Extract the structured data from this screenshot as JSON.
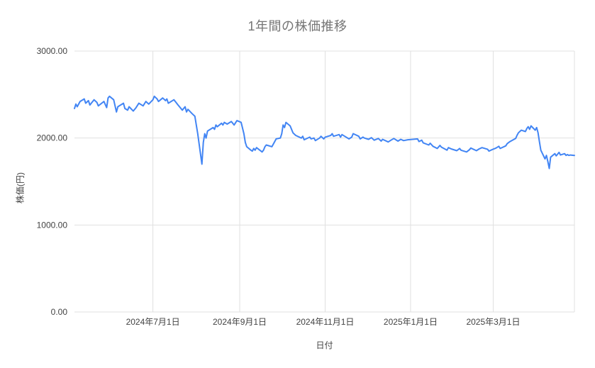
{
  "chart_data": {
    "type": "line",
    "title": "1年間の株価推移",
    "xlabel": "日付",
    "ylabel": "株価(円)",
    "ylim": [
      0,
      3000
    ],
    "grid": true,
    "legend": "none",
    "line_color": "#4285f4",
    "grid_color": "#e0e0e0",
    "background_color": "#ffffff",
    "y_ticks": [
      {
        "value": 0,
        "label": "0.00"
      },
      {
        "value": 1000,
        "label": "1000.00"
      },
      {
        "value": 2000,
        "label": "2000.00"
      },
      {
        "value": 3000,
        "label": "3000.00"
      }
    ],
    "x_ticks": [
      {
        "date": "2024-07-01",
        "label": "2024年7月1日"
      },
      {
        "date": "2024-09-01",
        "label": "2024年9月1日"
      },
      {
        "date": "2024-11-01",
        "label": "2024年11月1日"
      },
      {
        "date": "2025-01-01",
        "label": "2025年1月1日"
      },
      {
        "date": "2025-03-01",
        "label": "2025年3月1日"
      }
    ],
    "series": [
      {
        "points": [
          [
            "2024-05-06",
            2340
          ],
          [
            "2024-05-07",
            2390
          ],
          [
            "2024-05-08",
            2360
          ],
          [
            "2024-05-10",
            2420
          ],
          [
            "2024-05-13",
            2450
          ],
          [
            "2024-05-14",
            2400
          ],
          [
            "2024-05-16",
            2430
          ],
          [
            "2024-05-17",
            2380
          ],
          [
            "2024-05-20",
            2440
          ],
          [
            "2024-05-22",
            2410
          ],
          [
            "2024-05-23",
            2370
          ],
          [
            "2024-05-27",
            2420
          ],
          [
            "2024-05-29",
            2350
          ],
          [
            "2024-05-30",
            2460
          ],
          [
            "2024-05-31",
            2480
          ],
          [
            "2024-06-03",
            2440
          ],
          [
            "2024-06-05",
            2300
          ],
          [
            "2024-06-06",
            2360
          ],
          [
            "2024-06-10",
            2400
          ],
          [
            "2024-06-11",
            2340
          ],
          [
            "2024-06-13",
            2320
          ],
          [
            "2024-06-14",
            2360
          ],
          [
            "2024-06-17",
            2310
          ],
          [
            "2024-06-19",
            2350
          ],
          [
            "2024-06-21",
            2400
          ],
          [
            "2024-06-24",
            2370
          ],
          [
            "2024-06-26",
            2420
          ],
          [
            "2024-06-28",
            2390
          ],
          [
            "2024-07-01",
            2440
          ],
          [
            "2024-07-02",
            2480
          ],
          [
            "2024-07-04",
            2450
          ],
          [
            "2024-07-05",
            2420
          ],
          [
            "2024-07-08",
            2460
          ],
          [
            "2024-07-10",
            2430
          ],
          [
            "2024-07-11",
            2450
          ],
          [
            "2024-07-12",
            2400
          ],
          [
            "2024-07-16",
            2440
          ],
          [
            "2024-07-17",
            2420
          ],
          [
            "2024-07-19",
            2380
          ],
          [
            "2024-07-22",
            2320
          ],
          [
            "2024-07-24",
            2360
          ],
          [
            "2024-07-25",
            2300
          ],
          [
            "2024-07-26",
            2330
          ],
          [
            "2024-07-29",
            2280
          ],
          [
            "2024-07-31",
            2250
          ],
          [
            "2024-08-01",
            2150
          ],
          [
            "2024-08-02",
            2050
          ],
          [
            "2024-08-05",
            1700
          ],
          [
            "2024-08-06",
            1950
          ],
          [
            "2024-08-07",
            2050
          ],
          [
            "2024-08-08",
            2000
          ],
          [
            "2024-08-09",
            2080
          ],
          [
            "2024-08-13",
            2120
          ],
          [
            "2024-08-14",
            2100
          ],
          [
            "2024-08-15",
            2150
          ],
          [
            "2024-08-16",
            2130
          ],
          [
            "2024-08-19",
            2170
          ],
          [
            "2024-08-20",
            2150
          ],
          [
            "2024-08-21",
            2180
          ],
          [
            "2024-08-23",
            2160
          ],
          [
            "2024-08-26",
            2190
          ],
          [
            "2024-08-27",
            2170
          ],
          [
            "2024-08-28",
            2150
          ],
          [
            "2024-08-30",
            2200
          ],
          [
            "2024-09-02",
            2180
          ],
          [
            "2024-09-04",
            2050
          ],
          [
            "2024-09-05",
            1950
          ],
          [
            "2024-09-06",
            1900
          ],
          [
            "2024-09-09",
            1860
          ],
          [
            "2024-09-10",
            1850
          ],
          [
            "2024-09-11",
            1880
          ],
          [
            "2024-09-12",
            1860
          ],
          [
            "2024-09-13",
            1890
          ],
          [
            "2024-09-17",
            1840
          ],
          [
            "2024-09-18",
            1860
          ],
          [
            "2024-09-19",
            1900
          ],
          [
            "2024-09-20",
            1920
          ],
          [
            "2024-09-24",
            1900
          ],
          [
            "2024-09-26",
            1960
          ],
          [
            "2024-09-27",
            1990
          ],
          [
            "2024-09-30",
            2000
          ],
          [
            "2024-10-01",
            2050
          ],
          [
            "2024-10-02",
            2150
          ],
          [
            "2024-10-03",
            2120
          ],
          [
            "2024-10-04",
            2180
          ],
          [
            "2024-10-07",
            2140
          ],
          [
            "2024-10-08",
            2100
          ],
          [
            "2024-10-09",
            2060
          ],
          [
            "2024-10-11",
            2030
          ],
          [
            "2024-10-15",
            2000
          ],
          [
            "2024-10-16",
            2020
          ],
          [
            "2024-10-17",
            1980
          ],
          [
            "2024-10-21",
            2010
          ],
          [
            "2024-10-22",
            1990
          ],
          [
            "2024-10-24",
            2000
          ],
          [
            "2024-10-25",
            1970
          ],
          [
            "2024-10-28",
            2000
          ],
          [
            "2024-10-29",
            2020
          ],
          [
            "2024-10-31",
            1990
          ],
          [
            "2024-11-01",
            2010
          ],
          [
            "2024-11-05",
            2030
          ],
          [
            "2024-11-06",
            2050
          ],
          [
            "2024-11-07",
            2020
          ],
          [
            "2024-11-11",
            2040
          ],
          [
            "2024-11-12",
            2010
          ],
          [
            "2024-11-13",
            2040
          ],
          [
            "2024-11-15",
            2020
          ],
          [
            "2024-11-18",
            1990
          ],
          [
            "2024-11-20",
            2010
          ],
          [
            "2024-11-21",
            2050
          ],
          [
            "2024-11-25",
            2020
          ],
          [
            "2024-11-26",
            1990
          ],
          [
            "2024-11-28",
            2010
          ],
          [
            "2024-11-29",
            2000
          ],
          [
            "2024-12-02",
            1985
          ],
          [
            "2024-12-04",
            2005
          ],
          [
            "2024-12-06",
            1975
          ],
          [
            "2024-12-09",
            1995
          ],
          [
            "2024-12-11",
            1965
          ],
          [
            "2024-12-12",
            1985
          ],
          [
            "2024-12-16",
            1955
          ],
          [
            "2024-12-18",
            1975
          ],
          [
            "2024-12-20",
            1995
          ],
          [
            "2024-12-23",
            1965
          ],
          [
            "2024-12-25",
            1985
          ],
          [
            "2024-12-27",
            1970
          ],
          [
            "2024-12-30",
            1980
          ],
          [
            "2025-01-06",
            1990
          ],
          [
            "2025-01-07",
            1960
          ],
          [
            "2025-01-09",
            1975
          ],
          [
            "2025-01-10",
            1945
          ],
          [
            "2025-01-14",
            1920
          ],
          [
            "2025-01-15",
            1940
          ],
          [
            "2025-01-17",
            1905
          ],
          [
            "2025-01-20",
            1880
          ],
          [
            "2025-01-22",
            1915
          ],
          [
            "2025-01-23",
            1895
          ],
          [
            "2025-01-27",
            1860
          ],
          [
            "2025-01-28",
            1890
          ],
          [
            "2025-01-30",
            1875
          ],
          [
            "2025-02-03",
            1855
          ],
          [
            "2025-02-05",
            1880
          ],
          [
            "2025-02-06",
            1860
          ],
          [
            "2025-02-10",
            1840
          ],
          [
            "2025-02-12",
            1865
          ],
          [
            "2025-02-13",
            1885
          ],
          [
            "2025-02-17",
            1855
          ],
          [
            "2025-02-19",
            1875
          ],
          [
            "2025-02-21",
            1890
          ],
          [
            "2025-02-25",
            1870
          ],
          [
            "2025-02-26",
            1850
          ],
          [
            "2025-02-28",
            1865
          ],
          [
            "2025-03-03",
            1885
          ],
          [
            "2025-03-05",
            1905
          ],
          [
            "2025-03-06",
            1880
          ],
          [
            "2025-03-10",
            1910
          ],
          [
            "2025-03-11",
            1935
          ],
          [
            "2025-03-13",
            1960
          ],
          [
            "2025-03-17",
            1995
          ],
          [
            "2025-03-18",
            2030
          ],
          [
            "2025-03-19",
            2060
          ],
          [
            "2025-03-21",
            2090
          ],
          [
            "2025-03-24",
            2075
          ],
          [
            "2025-03-25",
            2110
          ],
          [
            "2025-03-26",
            2130
          ],
          [
            "2025-03-27",
            2100
          ],
          [
            "2025-03-28",
            2140
          ],
          [
            "2025-03-31",
            2090
          ],
          [
            "2025-04-01",
            2120
          ],
          [
            "2025-04-02",
            2060
          ],
          [
            "2025-04-03",
            1960
          ],
          [
            "2025-04-04",
            1860
          ],
          [
            "2025-04-07",
            1760
          ],
          [
            "2025-04-08",
            1800
          ],
          [
            "2025-04-09",
            1730
          ],
          [
            "2025-04-10",
            1650
          ],
          [
            "2025-04-11",
            1780
          ],
          [
            "2025-04-14",
            1820
          ],
          [
            "2025-04-15",
            1795
          ],
          [
            "2025-04-16",
            1815
          ],
          [
            "2025-04-17",
            1835
          ],
          [
            "2025-04-18",
            1805
          ],
          [
            "2025-04-21",
            1820
          ],
          [
            "2025-04-22",
            1800
          ],
          [
            "2025-04-23",
            1810
          ],
          [
            "2025-04-24",
            1800
          ],
          [
            "2025-04-25",
            1805
          ],
          [
            "2025-04-28",
            1800
          ]
        ]
      }
    ]
  }
}
